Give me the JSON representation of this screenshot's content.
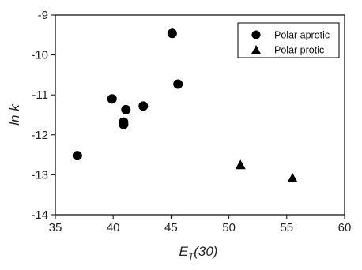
{
  "chart_data": {
    "type": "scatter",
    "xlabel": "E",
    "xlabel_sub": "T",
    "xlabel_suffix": "(30)",
    "ylabel": "ln k",
    "xlim": [
      35,
      60
    ],
    "ylim": [
      -14,
      -9
    ],
    "xticks": [
      35,
      40,
      45,
      50,
      55,
      60
    ],
    "yticks": [
      -14,
      -13,
      -12,
      -11,
      -10,
      -9
    ],
    "grid": false,
    "legend_position": "top-right",
    "series": [
      {
        "name": "Polar aprotic",
        "marker": "circle",
        "color": "#000000",
        "x": [
          36.9,
          39.9,
          40.9,
          40.9,
          41.1,
          42.6,
          45.1,
          45.6
        ],
        "y": [
          -12.52,
          -11.1,
          -11.68,
          -11.74,
          -11.37,
          -11.28,
          -9.46,
          -10.73
        ]
      },
      {
        "name": "Polar protic",
        "marker": "triangle",
        "color": "#000000",
        "x": [
          51.0,
          55.5
        ],
        "y": [
          -12.75,
          -13.08
        ]
      }
    ]
  }
}
